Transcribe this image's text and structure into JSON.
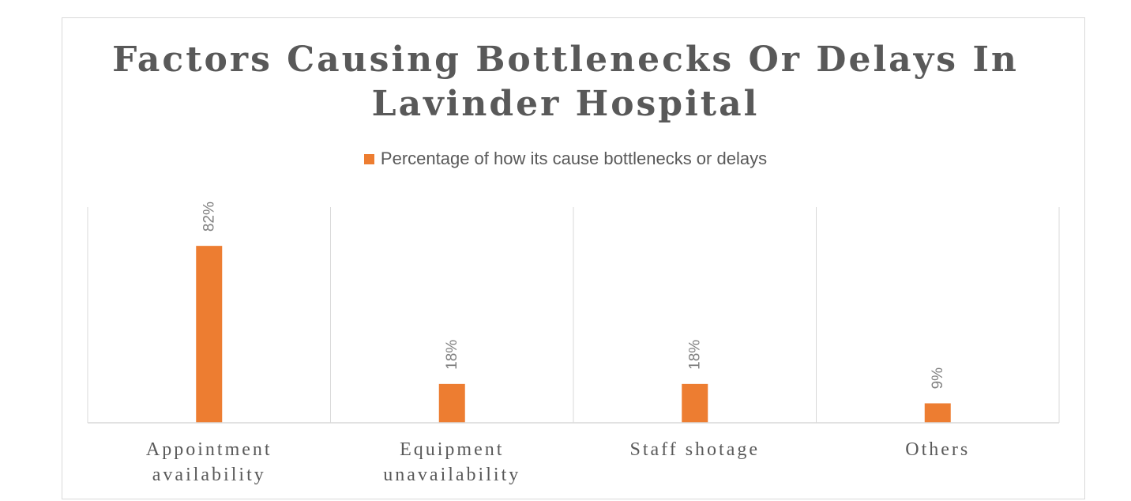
{
  "chart_data": {
    "type": "bar",
    "title": [
      "Factors Causing Bottlenecks Or Delays In",
      "Lavinder Hospital"
    ],
    "categories": [
      [
        "Appointment",
        "availability"
      ],
      [
        "Equipment",
        "unavailability"
      ],
      [
        "Staff shotage"
      ],
      [
        "Others"
      ]
    ],
    "series": [
      {
        "name": "Percentage of how its cause bottlenecks or delays",
        "values": [
          82,
          18,
          18,
          9
        ],
        "labels": [
          "82%",
          "18%",
          "18%",
          "9%"
        ],
        "color": "#ed7d31"
      }
    ],
    "xlabel": "",
    "ylabel": "",
    "ylim": [
      0,
      100
    ],
    "grid": "vertical category separators",
    "legend": "top-center"
  }
}
